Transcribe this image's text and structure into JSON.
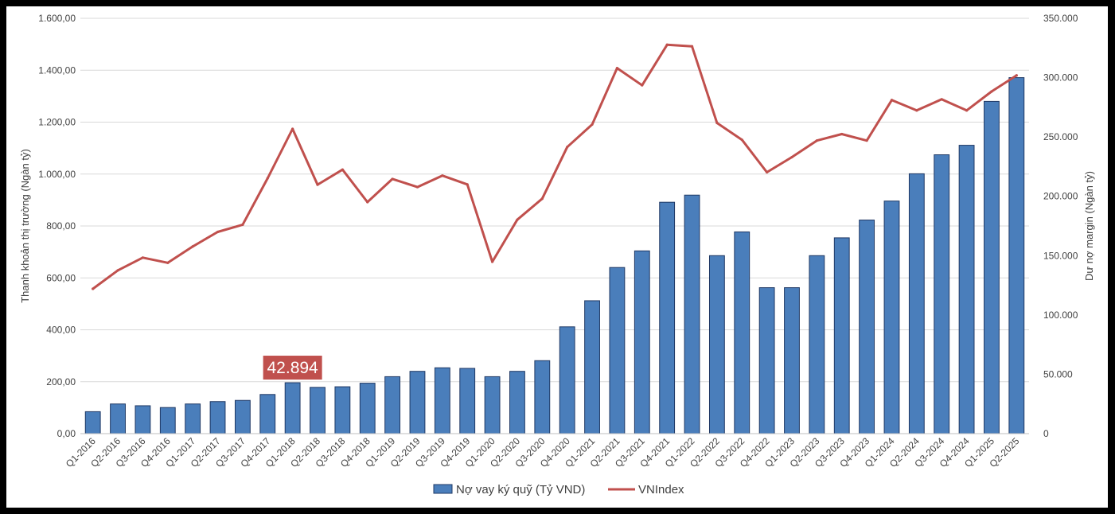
{
  "chart_data": {
    "type": "bar",
    "title": "",
    "categories": [
      "Q1-2016",
      "Q2-2016",
      "Q3-2016",
      "Q4-2016",
      "Q1-2017",
      "Q2-2017",
      "Q3-2017",
      "Q4-2017",
      "Q1-2018",
      "Q2-2018",
      "Q3-2018",
      "Q4-2018",
      "Q1-2019",
      "Q2-2019",
      "Q3-2019",
      "Q4-2019",
      "Q1-2020",
      "Q2-2020",
      "Q3-2020",
      "Q4-2020",
      "Q1-2021",
      "Q2-2021",
      "Q3-2021",
      "Q4-2021",
      "Q1-2022",
      "Q2-2022",
      "Q3-2022",
      "Q4-2022",
      "Q1-2023",
      "Q2-2023",
      "Q3-2023",
      "Q4-2023",
      "Q1-2024",
      "Q2-2024",
      "Q3-2024",
      "Q4-2024",
      "Q1-2025",
      "Q2-2025"
    ],
    "series": [
      {
        "name": "Nợ vay ký quỹ (Tỷ VND)",
        "type": "bar",
        "axis": "right",
        "color": "#4a7ebb",
        "values": [
          18500,
          25000,
          23500,
          22000,
          25000,
          27000,
          28000,
          33000,
          42894,
          39000,
          39500,
          42500,
          48000,
          52500,
          55500,
          55000,
          48000,
          52500,
          61500,
          90000,
          112000,
          140000,
          154000,
          195000,
          201000,
          150000,
          170000,
          123000,
          123000,
          150000,
          165000,
          180000,
          196000,
          219000,
          235000,
          243000,
          280000,
          300000
        ]
      },
      {
        "name": "VNIndex",
        "type": "line",
        "axis": "left",
        "color": "#c0504d",
        "values": [
          558,
          629,
          678,
          658,
          721,
          777,
          805,
          984,
          1174,
          959,
          1017,
          892,
          981,
          950,
          994,
          960,
          662,
          824,
          905,
          1104,
          1191,
          1408,
          1342,
          1498,
          1492,
          1197,
          1132,
          1007,
          1065,
          1129,
          1154,
          1129,
          1285,
          1245,
          1288,
          1245,
          1318,
          1380
        ]
      }
    ],
    "y_left": {
      "label": "Thanh khoản thị trường (Ngàn tỷ)",
      "ylim": [
        0,
        1600
      ],
      "ticks": [
        "0,00",
        "200,00",
        "400,00",
        "600,00",
        "800,00",
        "1.000,00",
        "1.200,00",
        "1.400,00",
        "1.600,00"
      ]
    },
    "y_right": {
      "label": "Dư nợ margin (Ngàn tỷ)",
      "ylim": [
        0,
        350000
      ],
      "ticks": [
        "0",
        "50.000",
        "100.000",
        "150.000",
        "200.000",
        "250.000",
        "300.000",
        "350.000"
      ]
    },
    "grid": true,
    "legend_position": "bottom",
    "annotation": {
      "text": "42.894",
      "category": "Q1-2018",
      "series": "Nợ vay ký quỹ (Tỷ VND)",
      "color": "#c0504d"
    }
  }
}
